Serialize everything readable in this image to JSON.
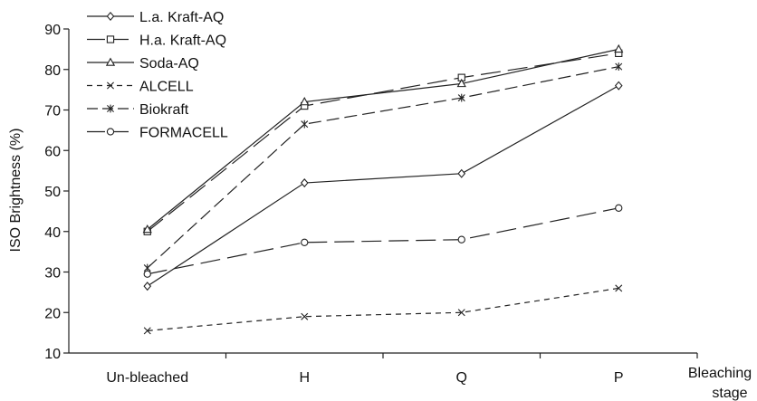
{
  "chart_data": {
    "type": "line",
    "title": "",
    "xlabel": "Bleaching stage",
    "ylabel": "ISO Brightness (%)",
    "categories": [
      "Un-bleached",
      "H",
      "Q",
      "P"
    ],
    "ylim": [
      10,
      90
    ],
    "yticks": [
      10,
      20,
      30,
      40,
      50,
      60,
      70,
      80,
      90
    ],
    "grid": false,
    "legend_position": "top-left",
    "series": [
      {
        "name": "L.a. Kraft-AQ",
        "values": [
          26.5,
          52.0,
          54.3,
          76.0
        ],
        "marker": "diamond",
        "dash": "solid"
      },
      {
        "name": "H.a. Kraft-AQ",
        "values": [
          40.0,
          71.0,
          78.0,
          84.0
        ],
        "marker": "square",
        "dash": "longdash"
      },
      {
        "name": "Soda-AQ",
        "values": [
          40.5,
          72.0,
          76.5,
          85.0
        ],
        "marker": "triangle",
        "dash": "solid"
      },
      {
        "name": "ALCELL",
        "values": [
          15.5,
          19.0,
          20.0,
          26.0
        ],
        "marker": "x",
        "dash": "shortdash"
      },
      {
        "name": "Biokraft",
        "values": [
          31.0,
          66.5,
          73.0,
          80.7
        ],
        "marker": "star",
        "dash": "mediumdash"
      },
      {
        "name": "FORMACELL",
        "values": [
          29.5,
          37.3,
          38.0,
          45.8
        ],
        "marker": "circle",
        "dash": "longdash"
      }
    ]
  }
}
